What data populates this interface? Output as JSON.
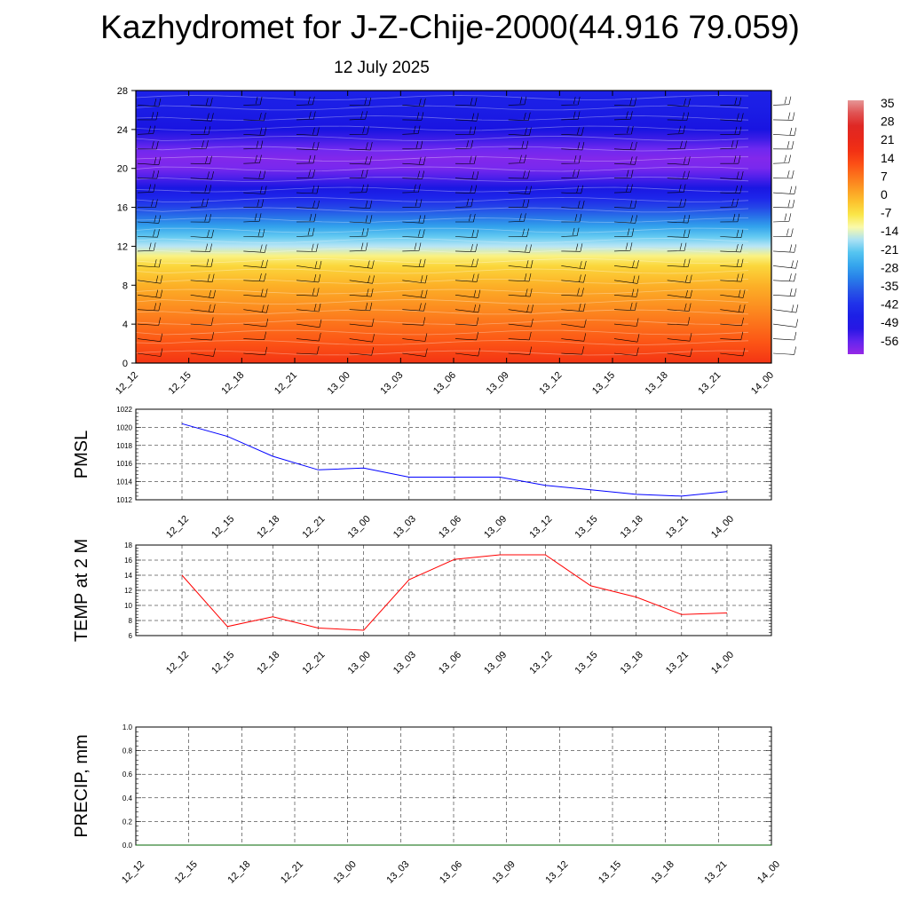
{
  "header": {
    "title": "Kazhydromet for J-Z-Chije-2000(44.916 79.059)",
    "date": "12 July 2025"
  },
  "chart_data": [
    {
      "type": "heatmap",
      "name": "temperature-profile",
      "y_ticks": [
        0,
        4,
        8,
        12,
        16,
        20,
        24,
        28
      ],
      "ylim": [
        0,
        28
      ],
      "x_ticks": [
        "12_12",
        "12_15",
        "12_18",
        "12_21",
        "13_00",
        "13_03",
        "13_06",
        "13_09",
        "13_12",
        "13_15",
        "13_18",
        "13_21",
        "14_00"
      ],
      "colorbar": {
        "labels": [
          "35",
          "28",
          "21",
          "14",
          "7",
          "0",
          "-7",
          "-14",
          "-21",
          "-28",
          "-35",
          "-42",
          "-49",
          "-56"
        ],
        "range": [
          -60,
          38
        ]
      },
      "profile_levels": [
        0,
        2,
        4,
        6,
        8,
        10,
        11,
        12,
        13,
        14,
        15,
        16,
        17,
        18,
        19,
        20,
        21,
        22,
        23,
        24,
        26,
        28
      ],
      "profile_values": [
        18,
        13,
        9,
        5,
        1,
        -4,
        -9,
        -15,
        -20,
        -26,
        -32,
        -38,
        -43,
        -48,
        -53,
        -57,
        -58,
        -56,
        -52,
        -49,
        -46,
        -44
      ],
      "wind_barbs": true
    },
    {
      "type": "line",
      "name": "pmsl",
      "ylabel": "PMSL",
      "ylim": [
        1012,
        1022
      ],
      "y_ticks": [
        1012,
        1014,
        1016,
        1018,
        1020,
        1022
      ],
      "categories": [
        "12_12",
        "12_15",
        "12_18",
        "12_21",
        "13_00",
        "13_03",
        "13_06",
        "13_09",
        "13_12",
        "13_15",
        "13_18",
        "13_21",
        "14_00"
      ],
      "values": [
        1020.4,
        1019.0,
        1016.8,
        1015.3,
        1015.5,
        1014.5,
        1014.5,
        1014.5,
        1013.6,
        1013.1,
        1012.6,
        1012.4,
        1012.9
      ],
      "color": "#0000ff"
    },
    {
      "type": "line",
      "name": "temp-2m",
      "ylabel": "TEMP at 2 M",
      "ylim": [
        6,
        18
      ],
      "y_ticks": [
        6,
        8,
        10,
        12,
        14,
        16,
        18
      ],
      "categories": [
        "12_12",
        "12_15",
        "12_18",
        "12_21",
        "13_00",
        "13_03",
        "13_06",
        "13_09",
        "13_12",
        "13_15",
        "13_18",
        "13_21",
        "14_00"
      ],
      "values": [
        14.0,
        7.2,
        8.5,
        7.0,
        6.7,
        13.4,
        16.1,
        16.7,
        16.7,
        12.6,
        11.1,
        8.8,
        9.0
      ],
      "color": "#ff0000"
    },
    {
      "type": "line",
      "name": "precip",
      "ylabel": "PRECIP, mm",
      "ylim": [
        0,
        1
      ],
      "y_ticks": [
        "0.0",
        "0.2",
        "0.4",
        "0.6",
        "0.8",
        "1.0"
      ],
      "categories": [
        "12_12",
        "12_15",
        "12_18",
        "12_21",
        "13_00",
        "13_03",
        "13_06",
        "13_09",
        "13_12",
        "13_15",
        "13_18",
        "13_21",
        "14_00"
      ],
      "values": [
        0,
        0,
        0,
        0,
        0,
        0,
        0,
        0,
        0,
        0,
        0,
        0,
        0
      ],
      "color": "#006400"
    }
  ]
}
